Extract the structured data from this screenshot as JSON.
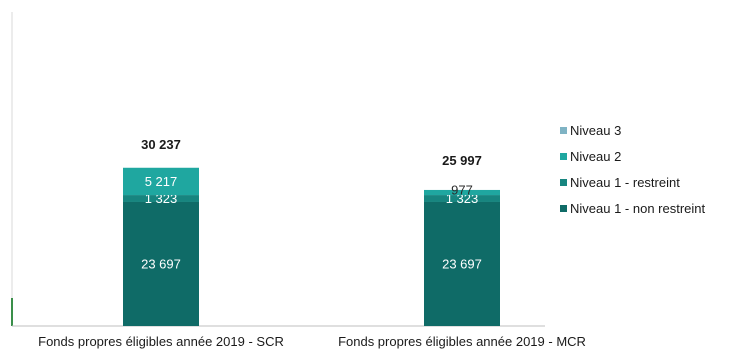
{
  "chart_data": {
    "type": "bar",
    "stacked": true,
    "categories": [
      "Fonds propres éligibles  année 2019 - SCR",
      "Fonds propres éligibles  année 2019 - MCR"
    ],
    "totals": [
      "30 237",
      "25 997"
    ],
    "series": [
      {
        "name": "Niveau 1 - non restreint",
        "values": [
          23697,
          23697
        ],
        "labels": [
          "23 697",
          "23 697"
        ],
        "color": "#0f6b67"
      },
      {
        "name": "Niveau 1 - restreint",
        "values": [
          1323,
          1323
        ],
        "labels": [
          "1 323",
          "1 323"
        ],
        "color": "#17857f"
      },
      {
        "name": "Niveau 2",
        "values": [
          5217,
          977
        ],
        "labels": [
          "5 217",
          "977"
        ],
        "color": "#1fa7a0"
      },
      {
        "name": "Niveau 3",
        "values": [
          0,
          0
        ],
        "labels": [
          "",
          ""
        ],
        "color": "#7fb3c4"
      }
    ],
    "legend_order": [
      "Niveau 3",
      "Niveau 2",
      "Niveau 1 - restreint",
      "Niveau 1 - non restreint"
    ],
    "legend_position": "right",
    "ylim": [
      0,
      60000
    ],
    "grid": false
  }
}
